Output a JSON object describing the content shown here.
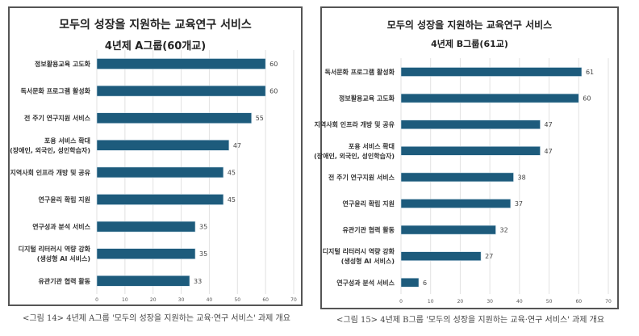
{
  "chart_data": [
    {
      "type": "bar",
      "orientation": "horizontal",
      "title": "모두의 성장을 지원하는 교육연구 서비스",
      "subtitle": "4년제 A그룹(60개교)",
      "categories": [
        "정보활용교육 고도화",
        "독서문화 프로그램 활성화",
        "전 주기 연구지원 서비스",
        "포용 서비스 확대|(장애인, 외국인, 성인학습자)",
        "지역사회 인프라 개방 및 공유",
        "연구윤리 확립 지원",
        "연구성과 분석 서비스",
        "디지털 리터러시 역량 강화|(생성형 AI 서비스)",
        "유관기관 협력 활동"
      ],
      "values": [
        60,
        60,
        55,
        47,
        45,
        45,
        35,
        35,
        33
      ],
      "xlim": [
        0,
        70
      ],
      "xticks": [
        "0",
        "10",
        "20",
        "30",
        "40",
        "50",
        "60",
        "70"
      ],
      "grid": true,
      "bar_color": "#1d5b7c",
      "caption": "<그림 14> 4년제 A그룹 '모두의 성장을 지원하는 교육·연구 서비스' 과제 개요"
    },
    {
      "type": "bar",
      "orientation": "horizontal",
      "title": "모두의 성장을 지원하는 교육연구 서비스",
      "subtitle": "4년제 B그룹(61교)",
      "categories": [
        "독서문화 프로그램 활성화",
        "정보활용교육 고도화",
        "지역사회 인프라 개방 및 공유",
        "포용 서비스 확대|(장애인, 외국인, 성인학습자)",
        "전 주기 연구지원 서비스",
        "연구윤리 확립 지원",
        "유관기관 협력 활동",
        "디지털 리터러시 역량 강화|(생성형 AI 서비스)",
        "연구성과 분석 서비스"
      ],
      "values": [
        61,
        60,
        47,
        47,
        38,
        37,
        32,
        27,
        6
      ],
      "xlim": [
        0,
        70
      ],
      "xticks": [
        "0",
        "10",
        "20",
        "30",
        "40",
        "50",
        "60",
        "70"
      ],
      "grid": true,
      "bar_color": "#1d5b7c",
      "caption": "<그림 15> 4년제 B그룹 '모두의 성장을 지원하는 교육·연구 서비스' 과제 개요"
    }
  ]
}
